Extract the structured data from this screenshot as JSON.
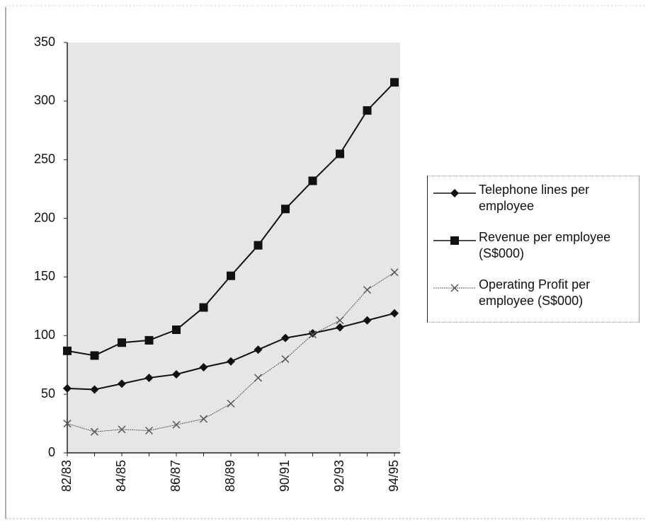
{
  "chart_data": {
    "type": "line",
    "categories": [
      "82/83",
      null,
      "84/85",
      null,
      "86/87",
      null,
      "88/89",
      null,
      "90/91",
      null,
      "92/93",
      null,
      "94/95"
    ],
    "series": [
      {
        "name": "Telephone lines per employee",
        "color": "#111111",
        "marker": "diamond",
        "values": [
          55,
          54,
          59,
          64,
          67,
          73,
          78,
          88,
          98,
          102,
          107,
          113,
          119
        ]
      },
      {
        "name": "Revenue per employee (S$000)",
        "color": "#111111",
        "marker": "square",
        "values": [
          87,
          83,
          94,
          96,
          105,
          124,
          151,
          177,
          208,
          232,
          255,
          292,
          316
        ]
      },
      {
        "name": "Operating Profit per employee (S$000)",
        "color": "#555555",
        "marker": "x",
        "values": [
          25,
          18,
          20,
          19,
          24,
          29,
          42,
          64,
          80,
          101,
          113,
          139,
          154
        ]
      }
    ],
    "ylim": [
      0,
      350
    ],
    "yticks": [
      0,
      50,
      100,
      150,
      200,
      250,
      300,
      350
    ]
  }
}
